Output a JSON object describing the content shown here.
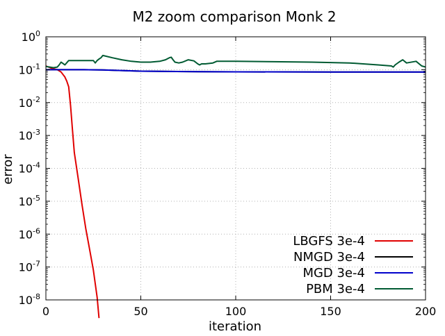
{
  "chart_data": {
    "type": "line",
    "title": "M2 zoom comparison Monk 2",
    "xlabel": "iteration",
    "ylabel": "error",
    "xlim": [
      0,
      200
    ],
    "ylim_log10": [
      -8,
      0
    ],
    "y_scale": "log",
    "grid": true,
    "grid_style": "dotted",
    "legend_position": "lower-right",
    "x_ticks": [
      0,
      50,
      100,
      150,
      200
    ],
    "x_tick_labels": [
      "0",
      "50",
      "100",
      "150",
      "200"
    ],
    "y_ticks_log10": [
      0,
      -1,
      -2,
      -3,
      -4,
      -5,
      -6,
      -7,
      -8
    ],
    "y_tick_labels": [
      {
        "base": "10",
        "exp": "0"
      },
      {
        "base": "10",
        "exp": "-1"
      },
      {
        "base": "10",
        "exp": "-2"
      },
      {
        "base": "10",
        "exp": "-3"
      },
      {
        "base": "10",
        "exp": "-4"
      },
      {
        "base": "10",
        "exp": "-5"
      },
      {
        "base": "10",
        "exp": "-6"
      },
      {
        "base": "10",
        "exp": "-7"
      },
      {
        "base": "10",
        "exp": "-8"
      }
    ],
    "series": [
      {
        "name": "LBGFS 3e-4",
        "color": "#e00000",
        "x": [
          0,
          3,
          6,
          8,
          10,
          11,
          12,
          13,
          14,
          15,
          17,
          19,
          21,
          23,
          25,
          27,
          28
        ],
        "y": [
          0.13,
          0.11,
          0.1,
          0.085,
          0.06,
          0.045,
          0.03,
          0.008,
          0.0015,
          0.0003,
          5e-05,
          8e-06,
          1.5e-06,
          3.5e-07,
          8e-08,
          1.2e-08,
          2.8e-09
        ]
      },
      {
        "name": "NMGD 3e-4",
        "color": "#000000",
        "x": [
          0,
          10,
          20,
          30,
          50,
          80,
          100,
          150,
          200
        ],
        "y": [
          0.1,
          0.1,
          0.1,
          0.098,
          0.09,
          0.087,
          0.086,
          0.085,
          0.085
        ]
      },
      {
        "name": "MGD 3e-4",
        "color": "#0000cc",
        "x": [
          0,
          10,
          20,
          30,
          50,
          80,
          100,
          150,
          200
        ],
        "y": [
          0.1,
          0.1,
          0.1,
          0.098,
          0.09,
          0.087,
          0.086,
          0.085,
          0.085
        ]
      },
      {
        "name": "PBM 3e-4",
        "color": "#005a32",
        "x": [
          0,
          2,
          4,
          6,
          7,
          8,
          9,
          10,
          12,
          15,
          20,
          25,
          26,
          27,
          28,
          29,
          30,
          35,
          40,
          45,
          50,
          55,
          60,
          63,
          65,
          66,
          67,
          68,
          70,
          72,
          75,
          78,
          80,
          81,
          82,
          84,
          86,
          88,
          90,
          100,
          120,
          140,
          160,
          175,
          182,
          183,
          184,
          186,
          188,
          190,
          195,
          198,
          200
        ],
        "y": [
          0.125,
          0.12,
          0.115,
          0.12,
          0.14,
          0.17,
          0.155,
          0.14,
          0.19,
          0.19,
          0.19,
          0.19,
          0.16,
          0.19,
          0.21,
          0.23,
          0.27,
          0.23,
          0.2,
          0.18,
          0.17,
          0.17,
          0.18,
          0.2,
          0.23,
          0.24,
          0.2,
          0.17,
          0.16,
          0.17,
          0.2,
          0.185,
          0.15,
          0.14,
          0.15,
          0.15,
          0.155,
          0.16,
          0.18,
          0.18,
          0.175,
          0.17,
          0.16,
          0.14,
          0.13,
          0.12,
          0.14,
          0.17,
          0.2,
          0.16,
          0.18,
          0.13,
          0.12
        ]
      }
    ]
  }
}
